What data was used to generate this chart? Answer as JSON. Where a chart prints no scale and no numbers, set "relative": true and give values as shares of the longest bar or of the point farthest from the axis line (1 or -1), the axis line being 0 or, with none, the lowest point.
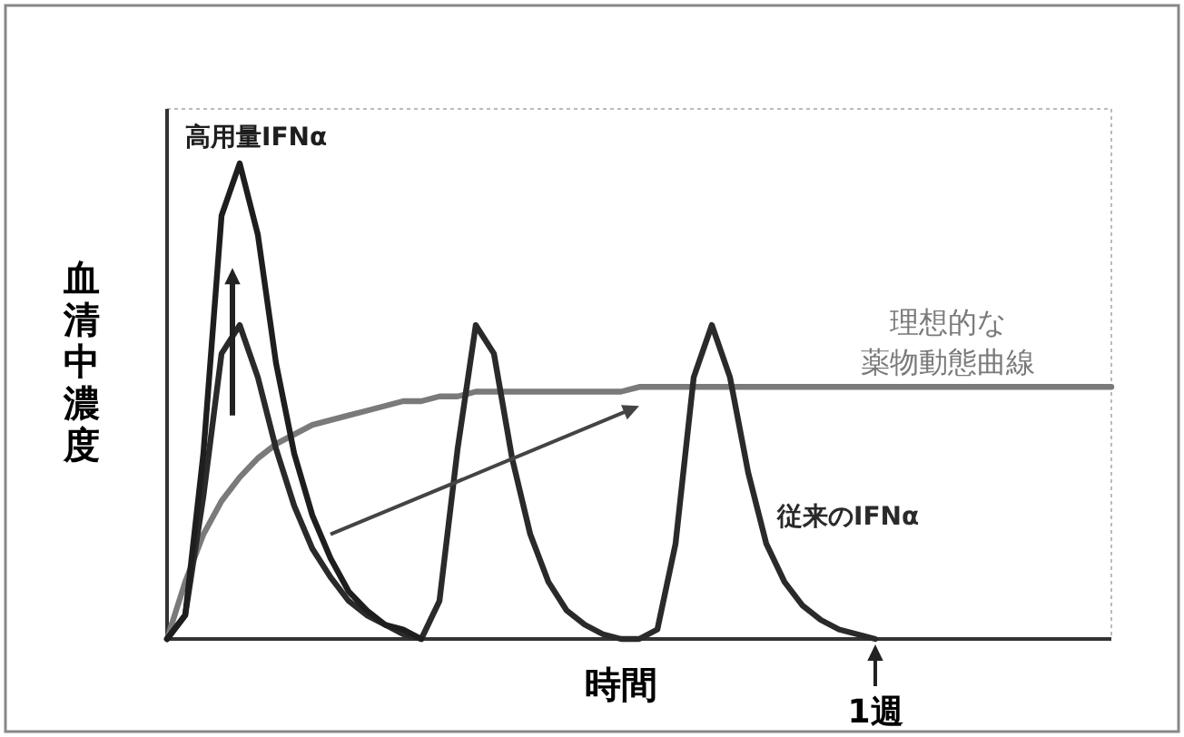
{
  "chart_data": {
    "type": "line",
    "relative": true,
    "xlabel": "時間",
    "ylabel": "血清中濃度",
    "categories": [
      null,
      null,
      null,
      null,
      null,
      null,
      null,
      null,
      null,
      null,
      null,
      null,
      null,
      null,
      null,
      null,
      null,
      null,
      null,
      null,
      null,
      null,
      null,
      null,
      null,
      null,
      null,
      null,
      null,
      null,
      null,
      null,
      null,
      null,
      null,
      null,
      null,
      null,
      null,
      null,
      null,
      null,
      null,
      null,
      null,
      null,
      null,
      null,
      null,
      null,
      null,
      null,
      null
    ],
    "series": [
      {
        "name": "高用量IFNα",
        "color": "#1e1e1e",
        "values": [
          0,
          0.05,
          0.39,
          0.89,
          1,
          0.85,
          0.58,
          0.39,
          0.26,
          0.17,
          0.1,
          0.06,
          0.03,
          0.02,
          0,
          null,
          null,
          null,
          null,
          null,
          null,
          null,
          null,
          null,
          null,
          null,
          null,
          null,
          null,
          null,
          null,
          null,
          null,
          null,
          null,
          null,
          null,
          null,
          null,
          null,
          null,
          null,
          null,
          null,
          null,
          null,
          null,
          null,
          null,
          null,
          null,
          null,
          null
        ]
      },
      {
        "name": "従来のIFNα",
        "color": "#2a2a2a",
        "values": [
          0,
          0.05,
          0.3,
          0.6,
          0.66,
          0.55,
          0.4,
          0.28,
          0.19,
          0.13,
          0.08,
          0.05,
          0.03,
          0.01,
          0,
          0.08,
          0.4,
          0.66,
          0.6,
          0.38,
          0.22,
          0.12,
          0.06,
          0.03,
          0.01,
          0,
          0,
          0.02,
          0.2,
          0.55,
          0.66,
          0.55,
          0.35,
          0.2,
          0.12,
          0.07,
          0.04,
          0.02,
          0.01,
          0,
          null,
          null,
          null,
          null,
          null,
          null,
          null,
          null,
          null,
          null,
          null,
          null,
          null
        ]
      },
      {
        "name": "理想的な薬物動態曲線",
        "color": "#7a7a7a",
        "values": [
          0,
          0.12,
          0.22,
          0.29,
          0.34,
          0.38,
          0.41,
          0.43,
          0.45,
          0.46,
          0.47,
          0.48,
          0.49,
          0.5,
          0.5,
          0.51,
          0.51,
          0.52,
          0.52,
          0.52,
          0.52,
          0.52,
          0.52,
          0.52,
          0.52,
          0.52,
          0.53,
          0.53,
          0.53,
          0.53,
          0.53,
          0.53,
          0.53,
          0.53,
          0.53,
          0.53,
          0.53,
          0.53,
          0.53,
          0.53,
          0.53,
          0.53,
          0.53,
          0.53,
          0.53,
          0.53,
          0.53,
          0.53,
          0.53,
          0.53,
          0.53,
          0.53,
          0.53
        ]
      }
    ],
    "annotations": [
      "1週"
    ]
  }
}
